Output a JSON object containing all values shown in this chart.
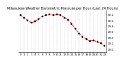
{
  "title": "Milwaukee Weather Barometric Pressure per Hour (Last 24 Hours)",
  "hours": [
    0,
    1,
    2,
    3,
    4,
    5,
    6,
    7,
    8,
    9,
    10,
    11,
    12,
    13,
    14,
    15,
    16,
    17,
    18,
    19,
    20,
    21,
    22,
    23
  ],
  "pressure": [
    30.18,
    30.1,
    30.0,
    29.92,
    29.96,
    30.05,
    30.14,
    30.18,
    30.2,
    30.18,
    30.2,
    30.18,
    30.1,
    30.02,
    29.88,
    29.7,
    29.55,
    29.42,
    29.35,
    29.28,
    29.3,
    29.25,
    29.2,
    29.12
  ],
  "line_color": "#ff0000",
  "marker_color": "#000000",
  "background_color": "#ffffff",
  "grid_color": "#888888",
  "ylim": [
    28.9,
    30.35
  ],
  "ytick_values": [
    29.0,
    29.2,
    29.4,
    29.6,
    29.8,
    30.0,
    30.2
  ],
  "title_fontsize": 3.5,
  "tick_fontsize": 3.0,
  "line_width": 0.7,
  "marker_size": 1.5
}
